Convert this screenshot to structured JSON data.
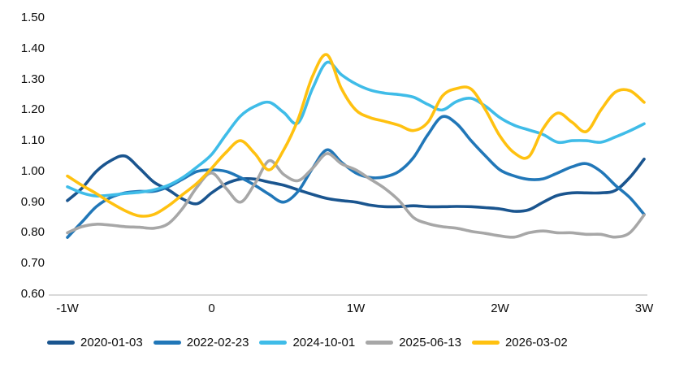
{
  "chart_data": {
    "type": "line",
    "title": "",
    "xlabel": "",
    "ylabel": "",
    "x_unit": "weeks relative to event date",
    "xlim": [
      -1,
      3
    ],
    "ylim": [
      0.6,
      1.5
    ],
    "grid": false,
    "legend_position": "bottom",
    "axis_line_color": "#d9d9d9",
    "text_color": "#0d0d0d",
    "yticks": [
      "1.50",
      "1.40",
      "1.30",
      "1.20",
      "1.10",
      "1.00",
      "0.90",
      "0.80",
      "0.70",
      "0.60"
    ],
    "ytick_values": [
      1.5,
      1.4,
      1.3,
      1.2,
      1.1,
      1.0,
      0.9,
      0.8,
      0.7,
      0.6
    ],
    "xticks": [
      {
        "value": -1,
        "label": "-1W"
      },
      {
        "value": 0,
        "label": "0"
      },
      {
        "value": 1,
        "label": "1W"
      },
      {
        "value": 2,
        "label": "2W"
      },
      {
        "value": 3,
        "label": "3W"
      }
    ],
    "x": [
      -1.0,
      -0.9,
      -0.8,
      -0.7,
      -0.6,
      -0.5,
      -0.4,
      -0.3,
      -0.2,
      -0.1,
      0.0,
      0.1,
      0.2,
      0.3,
      0.4,
      0.5,
      0.6,
      0.7,
      0.8,
      0.9,
      1.0,
      1.1,
      1.2,
      1.3,
      1.4,
      1.5,
      1.6,
      1.7,
      1.8,
      1.9,
      2.0,
      2.1,
      2.2,
      2.3,
      2.4,
      2.5,
      2.6,
      2.7,
      2.8,
      2.9,
      3.0
    ],
    "series": [
      {
        "name": "2020-01-03",
        "color": "#1a558f",
        "values": [
          0.905,
          0.945,
          1.0,
          1.035,
          1.05,
          1.01,
          0.965,
          0.94,
          0.91,
          0.895,
          0.93,
          0.96,
          0.975,
          0.975,
          0.965,
          0.955,
          0.94,
          0.925,
          0.912,
          0.905,
          0.9,
          0.89,
          0.885,
          0.885,
          0.888,
          0.885,
          0.885,
          0.886,
          0.885,
          0.882,
          0.878,
          0.87,
          0.875,
          0.9,
          0.922,
          0.93,
          0.93,
          0.93,
          0.938,
          0.98,
          1.04
        ]
      },
      {
        "name": "2022-02-23",
        "color": "#2177b8",
        "values": [
          0.785,
          0.835,
          0.885,
          0.915,
          0.93,
          0.935,
          0.935,
          0.95,
          0.975,
          1.0,
          1.005,
          1.0,
          0.98,
          0.955,
          0.925,
          0.9,
          0.935,
          1.01,
          1.07,
          1.03,
          0.995,
          0.98,
          0.982,
          1.0,
          1.045,
          1.12,
          1.178,
          1.155,
          1.1,
          1.05,
          1.005,
          0.985,
          0.974,
          0.976,
          0.995,
          1.015,
          1.025,
          1.0,
          0.955,
          0.915,
          0.86
        ]
      },
      {
        "name": "2024-10-01",
        "color": "#3fbce8",
        "values": [
          0.95,
          0.93,
          0.92,
          0.923,
          0.928,
          0.932,
          0.94,
          0.955,
          0.98,
          1.015,
          1.055,
          1.12,
          1.18,
          1.212,
          1.225,
          1.192,
          1.158,
          1.27,
          1.355,
          1.315,
          1.285,
          1.265,
          1.255,
          1.25,
          1.242,
          1.218,
          1.2,
          1.228,
          1.238,
          1.212,
          1.175,
          1.15,
          1.135,
          1.12,
          1.095,
          1.1,
          1.1,
          1.095,
          1.112,
          1.132,
          1.155
        ]
      },
      {
        "name": "2025-06-13",
        "color": "#a7a7a7",
        "values": [
          0.8,
          0.82,
          0.828,
          0.825,
          0.82,
          0.818,
          0.815,
          0.83,
          0.88,
          0.95,
          0.995,
          0.945,
          0.9,
          0.96,
          1.035,
          0.99,
          0.97,
          1.01,
          1.058,
          1.025,
          1.005,
          0.975,
          0.945,
          0.905,
          0.85,
          0.83,
          0.82,
          0.815,
          0.805,
          0.798,
          0.79,
          0.786,
          0.8,
          0.806,
          0.8,
          0.8,
          0.795,
          0.795,
          0.786,
          0.8,
          0.858
        ]
      },
      {
        "name": "2026-03-02",
        "color": "#ffc110",
        "values": [
          0.985,
          0.955,
          0.928,
          0.898,
          0.872,
          0.855,
          0.86,
          0.888,
          0.925,
          0.962,
          1.01,
          1.062,
          1.1,
          1.058,
          1.005,
          1.07,
          1.17,
          1.31,
          1.38,
          1.27,
          1.2,
          1.175,
          1.163,
          1.15,
          1.133,
          1.16,
          1.245,
          1.27,
          1.268,
          1.2,
          1.115,
          1.06,
          1.048,
          1.14,
          1.19,
          1.16,
          1.13,
          1.2,
          1.258,
          1.263,
          1.225
        ]
      }
    ]
  }
}
